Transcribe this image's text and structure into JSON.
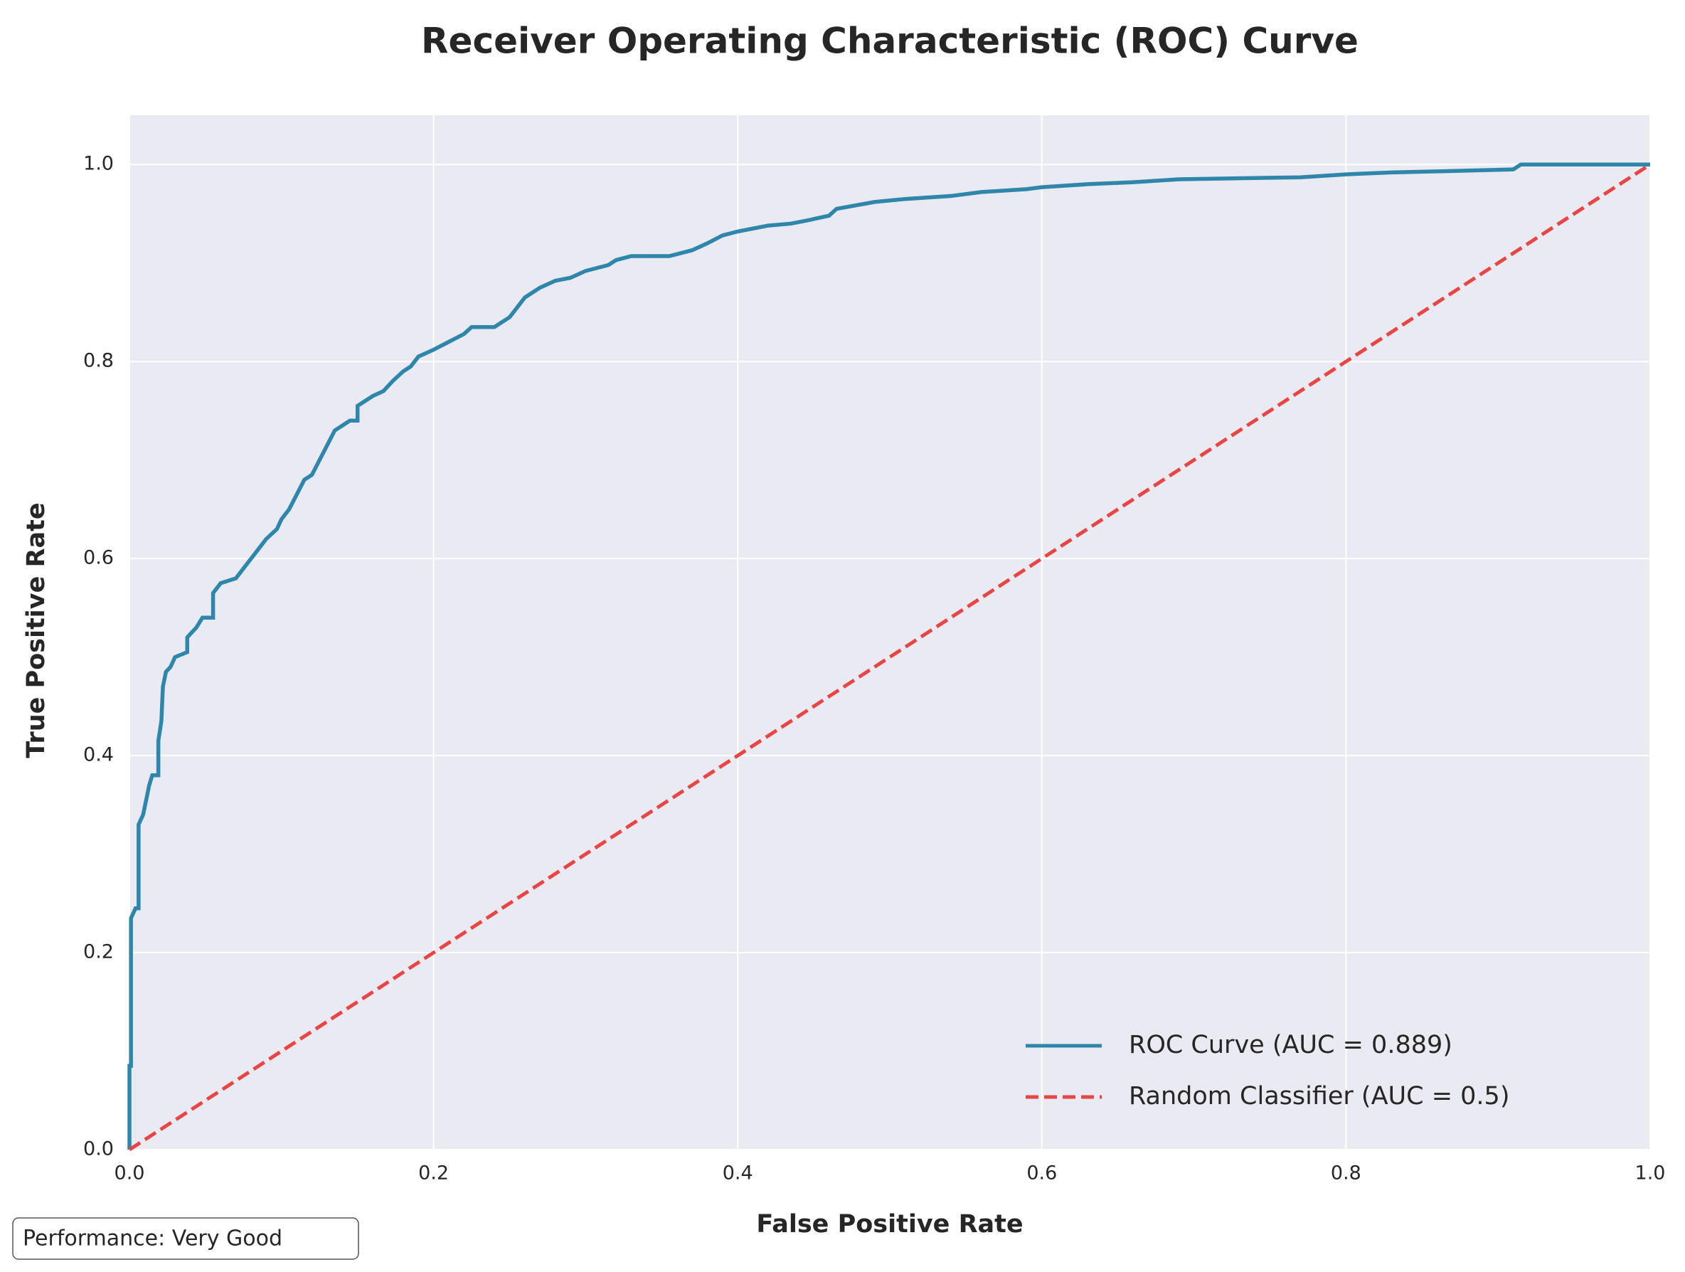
{
  "chart_data": {
    "type": "line",
    "title": "Receiver Operating Characteristic (ROC) Curve",
    "x_label": "False Positive Rate",
    "y_label": "True Positive Rate",
    "annotation": "Performance: Very Good",
    "xlim": [
      0,
      1
    ],
    "ylim": [
      0,
      1.05
    ],
    "xticks": [
      {
        "value": 0,
        "label": "0.0"
      },
      0.2,
      0.4,
      0.6,
      0.8,
      {
        "value": 1,
        "label": "1.0"
      }
    ],
    "yticks": [
      {
        "value": 0,
        "label": "0.0"
      },
      0.2,
      0.4,
      0.6,
      0.8,
      {
        "value": 1,
        "label": "1.0"
      }
    ],
    "grid": true,
    "legend": "lower right",
    "series": [
      {
        "name": "ROC Curve (AUC = 0.889)",
        "color": "#2e86ab",
        "style": "solid",
        "x": [
          0,
          0,
          0.001,
          0.001,
          0.004,
          0.006,
          0.006,
          0.009,
          0.011,
          0.013,
          0.015,
          0.019,
          0.019,
          0.021,
          0.022,
          0.024,
          0.027,
          0.03,
          0.038,
          0.038,
          0.044,
          0.048,
          0.055,
          0.055,
          0.06,
          0.07,
          0.075,
          0.08,
          0.085,
          0.09,
          0.097,
          0.1,
          0.105,
          0.11,
          0.115,
          0.12,
          0.125,
          0.13,
          0.135,
          0.14,
          0.145,
          0.15,
          0.15,
          0.16,
          0.167,
          0.173,
          0.18,
          0.185,
          0.19,
          0.2,
          0.21,
          0.22,
          0.225,
          0.24,
          0.25,
          0.255,
          0.26,
          0.27,
          0.28,
          0.29,
          0.3,
          0.315,
          0.32,
          0.33,
          0.355,
          0.37,
          0.38,
          0.39,
          0.4,
          0.41,
          0.42,
          0.435,
          0.445,
          0.46,
          0.465,
          0.49,
          0.51,
          0.54,
          0.56,
          0.59,
          0.6,
          0.63,
          0.66,
          0.69,
          0.77,
          0.8,
          0.83,
          0.86,
          0.91,
          0.915,
          1
        ],
        "values": [
          0,
          0.085,
          0.085,
          0.235,
          0.245,
          0.245,
          0.33,
          0.34,
          0.355,
          0.37,
          0.38,
          0.38,
          0.415,
          0.435,
          0.47,
          0.485,
          0.49,
          0.5,
          0.505,
          0.52,
          0.53,
          0.54,
          0.54,
          0.565,
          0.575,
          0.58,
          0.59,
          0.6,
          0.61,
          0.62,
          0.63,
          0.64,
          0.65,
          0.665,
          0.68,
          0.685,
          0.7,
          0.715,
          0.73,
          0.735,
          0.74,
          0.74,
          0.755,
          0.765,
          0.77,
          0.78,
          0.79,
          0.795,
          0.805,
          0.812,
          0.82,
          0.828,
          0.835,
          0.835,
          0.845,
          0.855,
          0.865,
          0.875,
          0.882,
          0.885,
          0.892,
          0.898,
          0.903,
          0.907,
          0.907,
          0.913,
          0.92,
          0.928,
          0.932,
          0.935,
          0.938,
          0.94,
          0.943,
          0.948,
          0.955,
          0.962,
          0.965,
          0.968,
          0.972,
          0.975,
          0.977,
          0.98,
          0.982,
          0.985,
          0.987,
          0.99,
          0.992,
          0.993,
          0.995,
          1,
          1
        ]
      },
      {
        "name": "Random Classifier (AUC = 0.5)",
        "color": "#e84545",
        "style": "dashed",
        "x": [
          0,
          1
        ],
        "values": [
          0,
          1
        ]
      }
    ]
  }
}
